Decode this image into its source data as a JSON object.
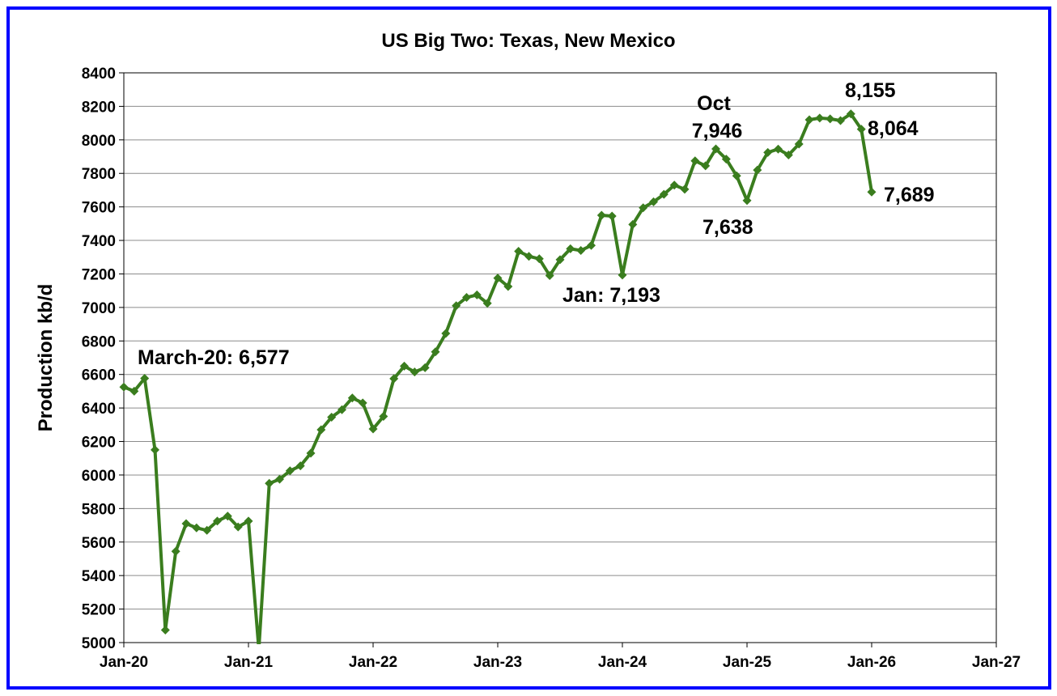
{
  "chart_data": {
    "type": "line",
    "title": "US Big Two: Texas, New Mexico",
    "xlabel": "",
    "ylabel": "Production kb/d",
    "ylim": [
      5000,
      8400
    ],
    "ytick_step": 200,
    "xlim": [
      "2020-01",
      "2027-01"
    ],
    "x_tick_labels": [
      "Jan-20",
      "Jan-21",
      "Jan-22",
      "Jan-23",
      "Jan-24",
      "Jan-25",
      "Jan-26",
      "Jan-27"
    ],
    "grid": true,
    "series_color": "#3a7d1e",
    "series": [
      {
        "start": "2020-01",
        "values": [
          6525,
          6500,
          6577,
          6150,
          5075,
          5545,
          5710,
          5685,
          5670,
          5725,
          5755,
          5690,
          5725,
          4870,
          5950,
          5975,
          6025,
          6055,
          6130,
          6270,
          6345,
          6390,
          6460,
          6430,
          6275,
          6350,
          6575,
          6650,
          6615,
          6640,
          6735,
          6845,
          7010,
          7060,
          7075,
          7025,
          7175,
          7125,
          7335,
          7305,
          7290,
          7190,
          7285,
          7350,
          7340,
          7370,
          7550,
          7545,
          7193,
          7495,
          7595,
          7630,
          7675,
          7730,
          7705,
          7875,
          7845,
          7946,
          7885,
          7785,
          7638,
          7820,
          7925,
          7945,
          7910,
          7975,
          8120,
          8130,
          8125,
          8115,
          8155,
          8064,
          7689
        ]
      }
    ],
    "annotations": [
      {
        "text": "March-20: 6,577"
      },
      {
        "text": "Jan: 7,193"
      },
      {
        "text": "Oct"
      },
      {
        "text": "7,946"
      },
      {
        "text": "7,638"
      },
      {
        "text": "8,155"
      },
      {
        "text": "8,064"
      },
      {
        "text": "7,689"
      }
    ]
  }
}
